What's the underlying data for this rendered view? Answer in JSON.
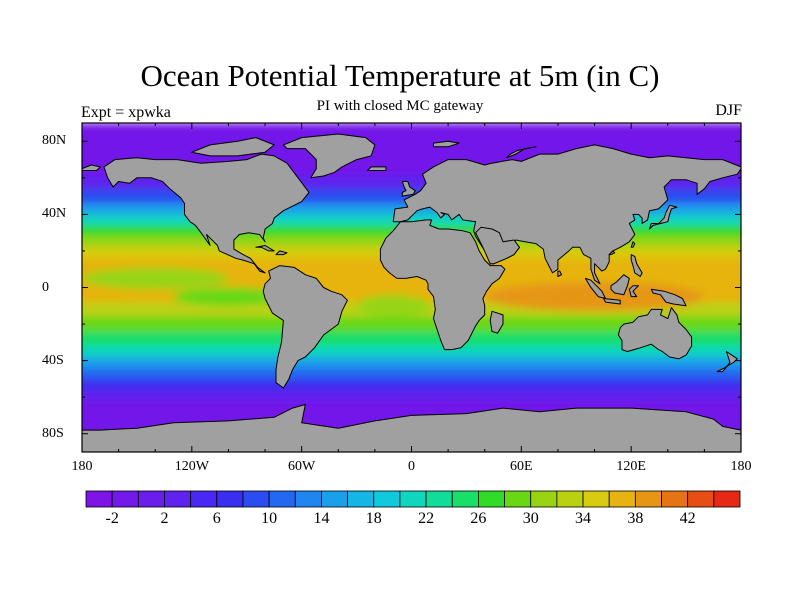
{
  "title": "Ocean Potential Temperature at 5m (in C)",
  "subtitle": "PI with closed MC gateway",
  "left_label": "Expt = xpwka",
  "right_label": "DJF",
  "map": {
    "type": "filled-contour-map",
    "projection": "cylindrical-equidistant",
    "lon_range": [
      -180,
      180
    ],
    "lat_range": [
      -90,
      90
    ],
    "land_color": "#a0a0a0",
    "x_ticks": [
      "180",
      "120W",
      "60W",
      "0",
      "60E",
      "120E",
      "180"
    ],
    "y_ticks": [
      "80N",
      "40N",
      "0",
      "40S",
      "80S"
    ]
  },
  "colorbar": {
    "colors": [
      "#7e14e6",
      "#7319e9",
      "#6a1eec",
      "#5e23ef",
      "#4828f2",
      "#3a2ff0",
      "#2a4cf0",
      "#2268f0",
      "#1e86ee",
      "#1a9fea",
      "#14b6e6",
      "#10c9dc",
      "#10d6c0",
      "#12dc9a",
      "#18de6a",
      "#30dc28",
      "#68d814",
      "#98d412",
      "#bcd012",
      "#d8cc10",
      "#e6b410",
      "#e69614",
      "#e67414",
      "#e64e14",
      "#e62814"
    ],
    "labels": [
      "-2",
      "2",
      "6",
      "10",
      "14",
      "18",
      "22",
      "26",
      "30",
      "34",
      "38",
      "42"
    ]
  }
}
